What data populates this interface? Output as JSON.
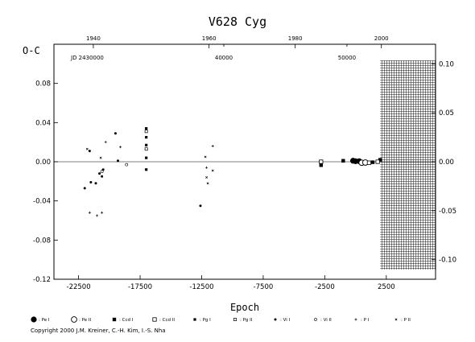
{
  "chart_data": {
    "type": "scatter",
    "title": "V628  Cyg",
    "ylabel": "O-C",
    "xlabel": "Epoch",
    "xlim": [
      -24500,
      6500
    ],
    "ylim": [
      -0.12,
      0.12
    ],
    "x_ticks": [
      "-22500",
      "-17500",
      "-12500",
      "-7500",
      "-2500",
      "2500"
    ],
    "x_tick_values": [
      -22500,
      -17500,
      -12500,
      -7500,
      -2500,
      2500
    ],
    "y_ticks": [
      "-0.12",
      "-0.08",
      "-0.04",
      "0.00",
      "0.04",
      "0.08"
    ],
    "y_tick_values": [
      -0.12,
      -0.08,
      -0.04,
      0.0,
      0.04,
      0.08
    ],
    "y_right_ticks": [
      "0.10",
      "0.05",
      "0.00",
      "-0.05",
      "-0.10"
    ],
    "y_right_tick_values": [
      0.1,
      0.05,
      0.0,
      -0.05,
      -0.1
    ],
    "top_year_ticks": [
      "1940",
      "1960",
      "1980",
      "2000"
    ],
    "top_year_epochs": [
      -21300,
      -11900,
      -4900,
      2100
    ],
    "jd_label": "JD 2430000",
    "jd_ticks": [
      "40000",
      "50000"
    ],
    "jd_tick_epochs": [
      -10700,
      -700
    ],
    "hatched_from_epoch": 2000,
    "series": [
      {
        "name": ": Pe I",
        "marker": "filled-circle-large",
        "points": [
          [
            -200,
            0.001
          ],
          [
            0,
            0.0005
          ],
          [
            300,
            0.0005
          ]
        ]
      },
      {
        "name": ": Pe II",
        "marker": "open-circle-large",
        "points": [
          [
            500,
            -0.001
          ],
          [
            800,
            -0.0008
          ]
        ]
      },
      {
        "name": ": Ccd I",
        "marker": "filled-square",
        "points": [
          [
            -2800,
            -0.0035
          ],
          [
            -1000,
            0.001
          ],
          [
            1400,
            -0.0005
          ],
          [
            2000,
            0.002
          ]
        ]
      },
      {
        "name": ": Ccd II",
        "marker": "open-square",
        "points": [
          [
            -2800,
            0.0
          ],
          [
            1100,
            -0.001
          ],
          [
            1800,
            0.0
          ]
        ]
      },
      {
        "name": ": Pg I",
        "marker": "filled-square-small",
        "points": [
          [
            -17000,
            0.034
          ],
          [
            -17000,
            0.025
          ],
          [
            -17000,
            0.017
          ],
          [
            -17000,
            0.004
          ],
          [
            -17000,
            -0.008
          ]
        ]
      },
      {
        "name": ": Pg II",
        "marker": "open-square-small",
        "points": [
          [
            -17000,
            0.031
          ],
          [
            -17000,
            0.013
          ]
        ]
      },
      {
        "name": ": Vi I",
        "marker": "filled-dot",
        "points": [
          [
            -22000,
            -0.027
          ],
          [
            -21600,
            0.011
          ],
          [
            -21500,
            -0.021
          ],
          [
            -21100,
            -0.022
          ],
          [
            -20800,
            -0.012
          ],
          [
            -20600,
            -0.015
          ],
          [
            -20500,
            -0.008
          ],
          [
            -19500,
            0.029
          ],
          [
            -19300,
            0.001
          ],
          [
            -12600,
            -0.045
          ]
        ]
      },
      {
        "name": ": Vi II",
        "marker": "open-dot",
        "points": [
          [
            -20600,
            -0.01
          ],
          [
            -18600,
            -0.003
          ]
        ]
      },
      {
        "name": ": P I",
        "marker": "plus",
        "points": [
          [
            -21600,
            -0.052
          ],
          [
            -21000,
            -0.055
          ],
          [
            -20600,
            -0.052
          ],
          [
            -20300,
            0.02
          ],
          [
            -19100,
            0.015
          ],
          [
            -12100,
            -0.006
          ],
          [
            -11600,
            0.016
          ]
        ]
      },
      {
        "name": ": P II",
        "marker": "cross",
        "points": [
          [
            -21800,
            0.013
          ],
          [
            -20700,
            0.004
          ],
          [
            -12100,
            -0.016
          ],
          [
            -12000,
            -0.022
          ],
          [
            -12200,
            0.005
          ],
          [
            -11600,
            -0.009
          ]
        ]
      }
    ]
  },
  "legend_title": "",
  "copyright": "Copyright 2000 J.M. Kreiner, C.-H. Kim, I.-S. Nha"
}
